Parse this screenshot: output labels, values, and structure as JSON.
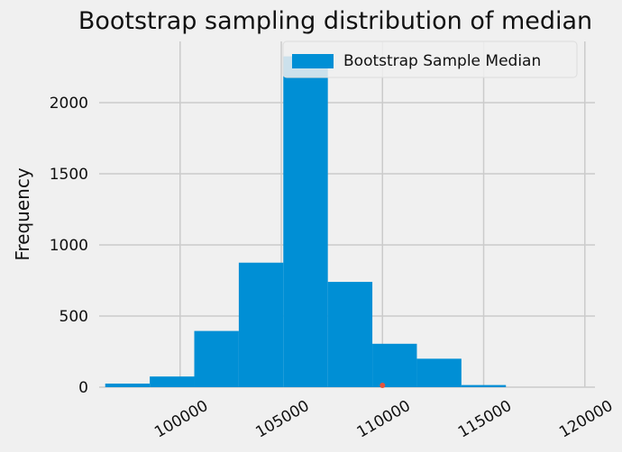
{
  "chart_data": {
    "type": "bar",
    "title": "Bootstrap sampling distribution of median",
    "xlabel": "",
    "ylabel": "Frequency",
    "xlim": [
      96000,
      120500
    ],
    "ylim": [
      0,
      2430
    ],
    "x_ticks": [
      100000,
      105000,
      110000,
      115000,
      120000
    ],
    "x_tick_labels": [
      "100000",
      "105000",
      "110000",
      "115000",
      "120000"
    ],
    "y_ticks": [
      0,
      500,
      1000,
      1500,
      2000
    ],
    "y_tick_labels": [
      "0",
      "500",
      "1000",
      "1500",
      "2000"
    ],
    "bins": [
      {
        "x0": 96300,
        "x1": 98500,
        "value": 25
      },
      {
        "x0": 98500,
        "x1": 100700,
        "value": 75
      },
      {
        "x0": 100700,
        "x1": 102900,
        "value": 395
      },
      {
        "x0": 102900,
        "x1": 105100,
        "value": 875
      },
      {
        "x0": 105100,
        "x1": 107300,
        "value": 2325
      },
      {
        "x0": 107300,
        "x1": 109500,
        "value": 740
      },
      {
        "x0": 109500,
        "x1": 111700,
        "value": 305
      },
      {
        "x0": 111700,
        "x1": 113900,
        "value": 200
      },
      {
        "x0": 113900,
        "x1": 116100,
        "value": 15
      }
    ],
    "marker": {
      "x": 110000,
      "y": 0,
      "color": "#e5533b"
    },
    "grid": true,
    "legend": {
      "label": "Bootstrap Sample Median",
      "position": "top-right"
    },
    "bar_color": "#008fd5"
  }
}
